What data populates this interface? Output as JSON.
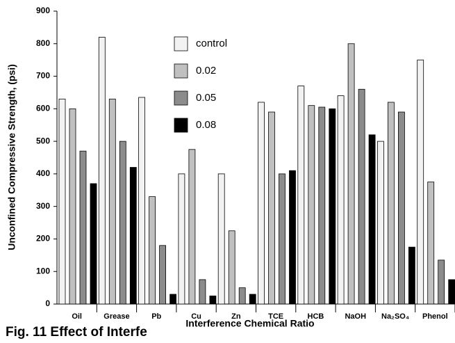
{
  "chart_data": {
    "type": "bar",
    "y_label": "Unconfined Compressive Strength, (psi)",
    "x_label": "Interference Chemical Ratio",
    "caption": "Fig. 11 Effect of Interfe",
    "categories": [
      "Oil",
      "Grease",
      "Pb",
      "Cu",
      "Zn",
      "TCE",
      "HCB",
      "NaOH",
      "Na₂SO₄",
      "Phenol"
    ],
    "series": [
      {
        "name": "control",
        "color": "#f2f2f2",
        "values": [
          630,
          820,
          635,
          400,
          400,
          620,
          670,
          640,
          500,
          750
        ]
      },
      {
        "name": "0.02",
        "color": "#c0c0c0",
        "values": [
          600,
          630,
          330,
          475,
          225,
          590,
          610,
          800,
          620,
          375
        ]
      },
      {
        "name": "0.05",
        "color": "#8c8c8c",
        "values": [
          470,
          500,
          180,
          75,
          50,
          400,
          605,
          660,
          590,
          135
        ]
      },
      {
        "name": "0.08",
        "color": "#000000",
        "values": [
          370,
          420,
          30,
          25,
          30,
          410,
          600,
          520,
          175,
          75
        ]
      }
    ],
    "ylim": [
      0,
      900
    ],
    "yticks": [
      0,
      100,
      200,
      300,
      400,
      500,
      600,
      700,
      800,
      900
    ]
  }
}
